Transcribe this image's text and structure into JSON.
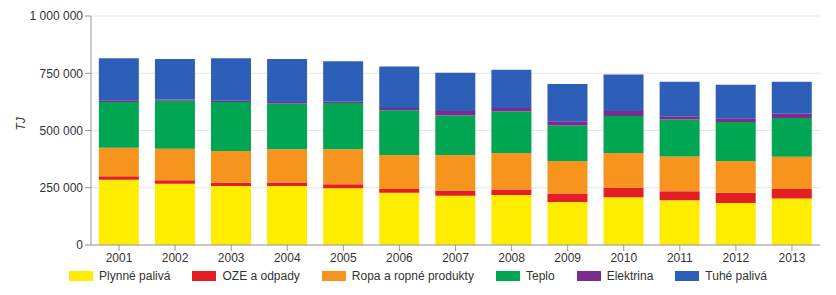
{
  "chart_data": {
    "type": "bar",
    "stacked": true,
    "grid": true,
    "legend": "bottom",
    "y_label": "TJ",
    "categories": [
      "2001",
      "2002",
      "2003",
      "2004",
      "2005",
      "2006",
      "2007",
      "2008",
      "2009",
      "2010",
      "2011",
      "2012",
      "2013"
    ],
    "ylim": [
      0,
      1000000
    ],
    "yticks": [
      0,
      {
        "value": 250000,
        "label": "250 000"
      },
      {
        "value": 500000,
        "label": "500 000"
      },
      {
        "value": 750000,
        "label": "750 000"
      },
      {
        "value": 1000000,
        "label": "1 000 000"
      }
    ],
    "series": [
      {
        "name": "Plynné palivá",
        "color": "#ffed00",
        "values": [
          285000,
          268000,
          258000,
          258000,
          248000,
          228000,
          215000,
          218000,
          188000,
          208000,
          195000,
          183000,
          203000
        ]
      },
      {
        "name": "OZE a odpady",
        "color": "#e31e24",
        "values": [
          15000,
          15000,
          14000,
          15000,
          17000,
          17000,
          23000,
          24000,
          37000,
          42000,
          40000,
          45000,
          42000
        ]
      },
      {
        "name": "Ropa a ropné produkty",
        "color": "#f7941d",
        "values": [
          125000,
          137000,
          138000,
          145000,
          153000,
          148000,
          155000,
          160000,
          142000,
          152000,
          152000,
          139000,
          140000
        ]
      },
      {
        "name": "Teplo",
        "color": "#00a651",
        "values": [
          200000,
          210000,
          215000,
          200000,
          202000,
          195000,
          172000,
          181000,
          155000,
          161000,
          161000,
          170000,
          170000
        ]
      },
      {
        "name": "Elektrina",
        "color": "#7b2c91",
        "values": [
          7000,
          5000,
          5000,
          7000,
          7000,
          10000,
          20000,
          15000,
          18000,
          22000,
          14000,
          16000,
          18000
        ]
      },
      {
        "name": "Tuhé palivá",
        "color": "#2e5fb8",
        "values": [
          183000,
          177000,
          185000,
          187000,
          175000,
          182000,
          167000,
          167000,
          163000,
          160000,
          151000,
          147000,
          140000
        ]
      }
    ]
  }
}
